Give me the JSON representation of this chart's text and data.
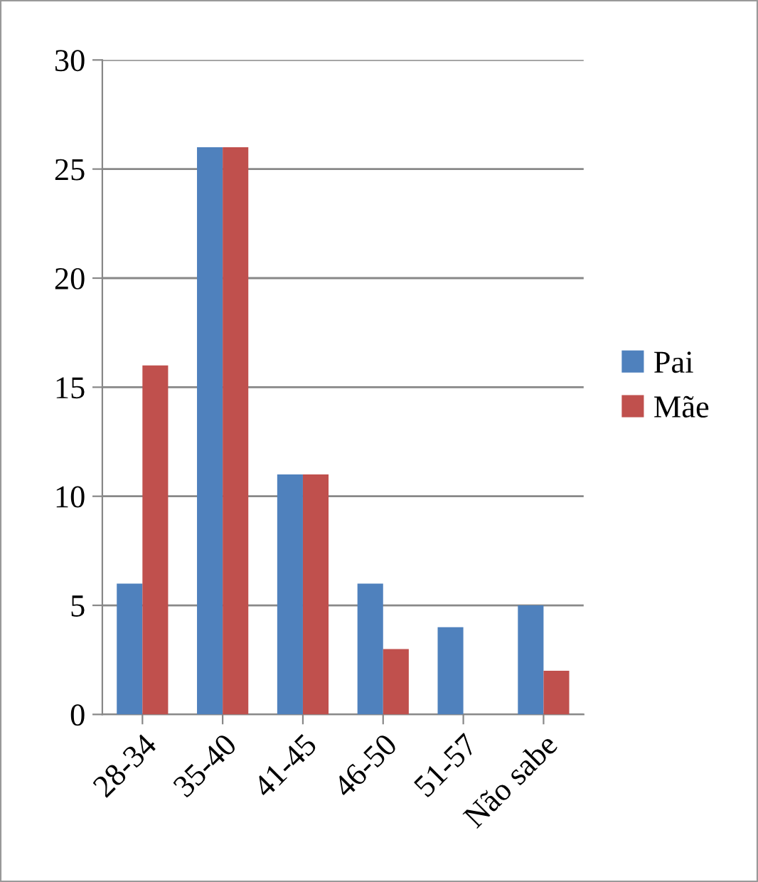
{
  "chart_data": {
    "type": "bar",
    "categories": [
      "28-34",
      "35-40",
      "41-45",
      "46-50",
      "51-57",
      "Não sabe"
    ],
    "series": [
      {
        "name": "Pai",
        "color": "#4f81bd",
        "values": [
          6,
          26,
          11,
          6,
          4,
          5
        ]
      },
      {
        "name": "Mãe",
        "color": "#c0504d",
        "values": [
          16,
          26,
          11,
          3,
          0,
          2
        ]
      }
    ],
    "ylim": [
      0,
      30
    ],
    "yticks": [
      0,
      5,
      10,
      15,
      20,
      25,
      30
    ],
    "grid": "y",
    "legend": "right"
  }
}
